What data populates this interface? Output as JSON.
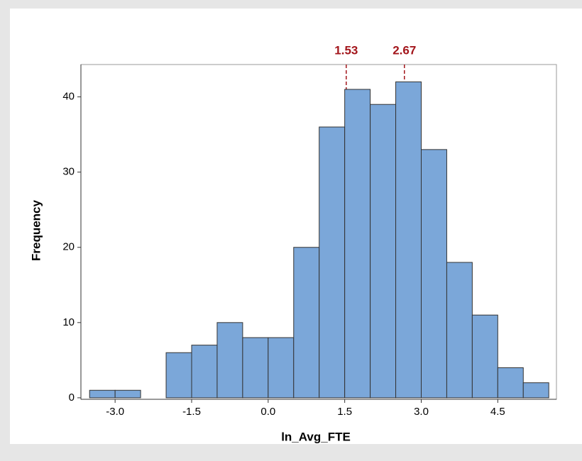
{
  "chart_data": {
    "type": "histogram",
    "x_label": "ln_Avg_FTE",
    "y_label": "Frequency",
    "bins": [
      -3.5,
      -3.0,
      -2.5,
      -2.0,
      -1.5,
      -1.0,
      -0.5,
      0.0,
      0.5,
      1.0,
      1.5,
      2.0,
      2.5,
      3.0,
      3.5,
      4.0,
      4.5,
      5.0,
      5.5
    ],
    "values": [
      1,
      1,
      0,
      6,
      7,
      10,
      8,
      8,
      20,
      36,
      41,
      39,
      42,
      33,
      18,
      11,
      4,
      2
    ],
    "color": "#7ba7d9",
    "reference_lines": [
      1.53,
      2.67
    ],
    "reference_color": "#a3161c",
    "xlim": [
      -3.67,
      5.65
    ],
    "ylim": [
      -0.2,
      44.3
    ],
    "xticks": [
      {
        "value": -3.0,
        "label": "-3.0"
      },
      {
        "value": -1.5,
        "label": "-1.5"
      },
      {
        "value": 0.0,
        "label": "0.0"
      },
      {
        "value": 1.5,
        "label": "1.5"
      },
      {
        "value": 3.0,
        "label": "3.0"
      },
      {
        "value": 4.5,
        "label": "4.5"
      }
    ],
    "yticks": [
      0,
      10,
      20,
      30,
      40
    ],
    "grid": false
  }
}
